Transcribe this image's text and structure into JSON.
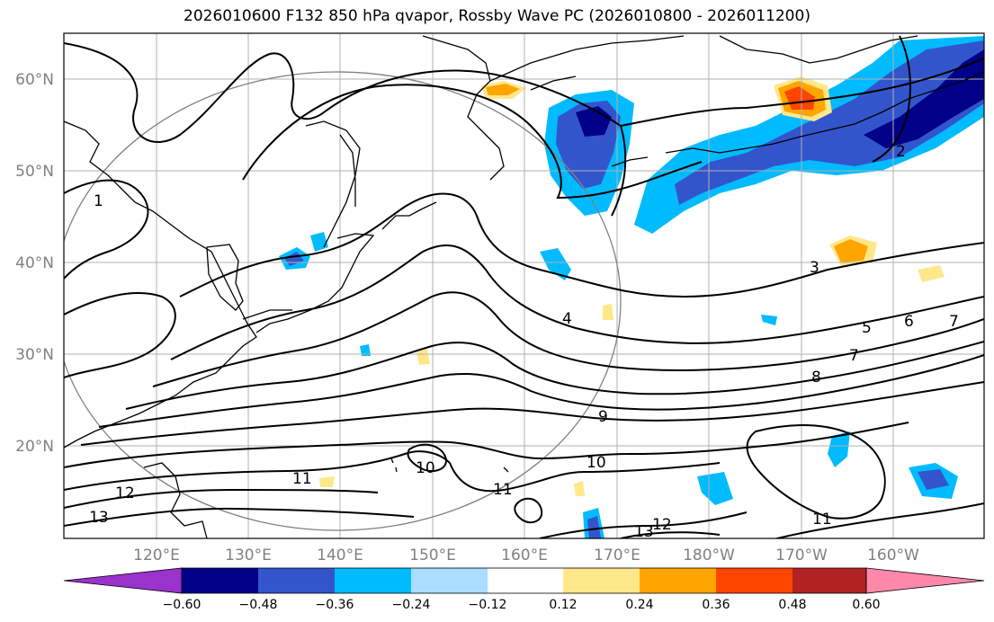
{
  "title": "2026010600 F132 850 hPa qvapor, Rossby Wave PC (2026010800 - 2026011200)",
  "lat_labels": [
    "60°N",
    "50°N",
    "40°N",
    "30°N",
    "20°N"
  ],
  "lon_labels": [
    "120°E",
    "130°E",
    "140°E",
    "150°E",
    "160°E",
    "170°E",
    "180°W",
    "170°W",
    "160°W"
  ],
  "contour_labels": [
    "1",
    "2",
    "3",
    "4",
    "5",
    "6",
    "7",
    "7",
    "8",
    "9",
    "10",
    "10",
    "11",
    "11",
    "11",
    "12",
    "12",
    "13",
    "13"
  ],
  "colorbar": {
    "ticks": [
      "−0.60",
      "−0.48",
      "−0.36",
      "−0.24",
      "−0.12",
      "0.12",
      "0.24",
      "0.36",
      "0.48",
      "0.60"
    ],
    "colors": [
      "#9933cc",
      "#000088",
      "#3355cc",
      "#00bbff",
      "#aaddff",
      "#ffffff",
      "#ffe88a",
      "#ffa500",
      "#ff4500",
      "#b22222",
      "#ff88aa"
    ]
  },
  "colors": {
    "grid": "#808080",
    "contour": "#000000",
    "coast": "#000000"
  }
}
